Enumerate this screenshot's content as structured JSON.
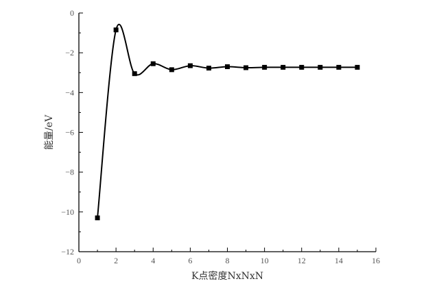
{
  "chart_data": {
    "type": "line",
    "title": "",
    "xlabel": "K点密度NxNxN",
    "ylabel": "能量/eV",
    "xlim": [
      0,
      16
    ],
    "ylim": [
      -12,
      0
    ],
    "x_ticks": [
      0,
      2,
      4,
      6,
      8,
      10,
      12,
      14,
      16
    ],
    "y_ticks": [
      0,
      -2,
      -4,
      -6,
      -8,
      -10,
      -12
    ],
    "grid": false,
    "legend": "none",
    "smooth": true,
    "series": [
      {
        "x": [
          1,
          2,
          3,
          4,
          5,
          6,
          7,
          8,
          9,
          10,
          11,
          12,
          13,
          14,
          15
        ],
        "values": [
          -10.3,
          -0.85,
          -3.05,
          -2.55,
          -2.85,
          -2.65,
          -2.77,
          -2.7,
          -2.75,
          -2.73,
          -2.73,
          -2.73,
          -2.73,
          -2.73,
          -2.73
        ],
        "color": "#000000",
        "marker": "square"
      }
    ]
  }
}
